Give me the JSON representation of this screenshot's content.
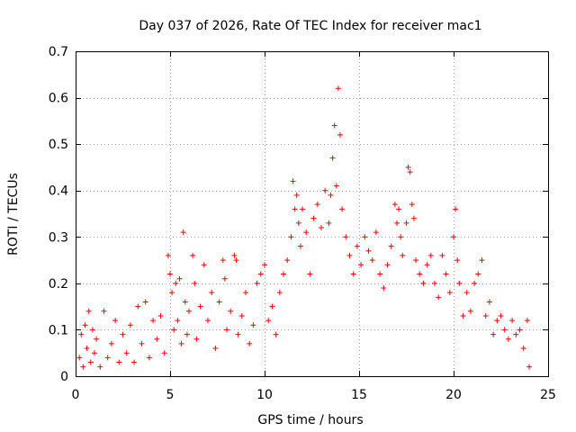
{
  "chart_data": {
    "type": "scatter",
    "title": "Day 037 of 2026, Rate Of TEC Index for receiver mac1",
    "xlabel": "GPS time / hours",
    "ylabel": "ROTI / TECUs",
    "xlim": [
      0,
      25
    ],
    "ylim": [
      0,
      0.7
    ],
    "xticks": [
      0,
      5,
      10,
      15,
      20,
      25
    ],
    "yticks": [
      0,
      0.1,
      0.2,
      0.3,
      0.4,
      0.5,
      0.6,
      0.7
    ],
    "xtick_labels": [
      "0",
      "5",
      "10",
      "15",
      "20",
      "25"
    ],
    "ytick_labels": [
      "0",
      "0.1",
      "0.2",
      "0.3",
      "0.4",
      "0.5",
      "0.6",
      "0.7"
    ],
    "grid": true,
    "marker": "+",
    "color": "#ff0000",
    "series": [
      {
        "name": "mac1",
        "points": [
          [
            0.2,
            0.04
          ],
          [
            0.3,
            0.09
          ],
          [
            0.4,
            0.02
          ],
          [
            0.5,
            0.11
          ],
          [
            0.6,
            0.06
          ],
          [
            0.7,
            0.14
          ],
          [
            0.8,
            0.03
          ],
          [
            0.9,
            0.1
          ],
          [
            1.0,
            0.05
          ],
          [
            1.1,
            0.08
          ],
          [
            1.3,
            0.02
          ],
          [
            1.5,
            0.14
          ],
          [
            1.7,
            0.04
          ],
          [
            1.9,
            0.07
          ],
          [
            2.1,
            0.12
          ],
          [
            2.3,
            0.03
          ],
          [
            2.5,
            0.09
          ],
          [
            2.7,
            0.05
          ],
          [
            2.9,
            0.11
          ],
          [
            3.1,
            0.03
          ],
          [
            3.3,
            0.15
          ],
          [
            3.5,
            0.07
          ],
          [
            3.7,
            0.16
          ],
          [
            3.9,
            0.04
          ],
          [
            4.1,
            0.12
          ],
          [
            4.3,
            0.08
          ],
          [
            4.5,
            0.13
          ],
          [
            4.7,
            0.05
          ],
          [
            4.9,
            0.26
          ],
          [
            5.0,
            0.22
          ],
          [
            5.1,
            0.18
          ],
          [
            5.2,
            0.1
          ],
          [
            5.3,
            0.2
          ],
          [
            5.4,
            0.12
          ],
          [
            5.5,
            0.21
          ],
          [
            5.6,
            0.07
          ],
          [
            5.7,
            0.31
          ],
          [
            5.8,
            0.16
          ],
          [
            5.9,
            0.09
          ],
          [
            6.0,
            0.14
          ],
          [
            6.2,
            0.26
          ],
          [
            6.3,
            0.2
          ],
          [
            6.4,
            0.08
          ],
          [
            6.6,
            0.15
          ],
          [
            6.8,
            0.24
          ],
          [
            7.0,
            0.12
          ],
          [
            7.2,
            0.18
          ],
          [
            7.4,
            0.06
          ],
          [
            7.6,
            0.16
          ],
          [
            7.8,
            0.25
          ],
          [
            7.9,
            0.21
          ],
          [
            8.0,
            0.1
          ],
          [
            8.2,
            0.14
          ],
          [
            8.4,
            0.26
          ],
          [
            8.5,
            0.25
          ],
          [
            8.6,
            0.09
          ],
          [
            8.8,
            0.13
          ],
          [
            9.0,
            0.18
          ],
          [
            9.2,
            0.07
          ],
          [
            9.4,
            0.11
          ],
          [
            9.6,
            0.2
          ],
          [
            9.8,
            0.22
          ],
          [
            10.0,
            0.24
          ],
          [
            10.2,
            0.12
          ],
          [
            10.4,
            0.15
          ],
          [
            10.6,
            0.09
          ],
          [
            10.8,
            0.18
          ],
          [
            11.0,
            0.22
          ],
          [
            11.2,
            0.25
          ],
          [
            11.4,
            0.3
          ],
          [
            11.5,
            0.42
          ],
          [
            11.6,
            0.36
          ],
          [
            11.7,
            0.39
          ],
          [
            11.8,
            0.33
          ],
          [
            11.9,
            0.28
          ],
          [
            12.0,
            0.36
          ],
          [
            12.2,
            0.31
          ],
          [
            12.4,
            0.22
          ],
          [
            12.6,
            0.34
          ],
          [
            12.8,
            0.37
          ],
          [
            13.0,
            0.32
          ],
          [
            13.2,
            0.4
          ],
          [
            13.4,
            0.33
          ],
          [
            13.5,
            0.39
          ],
          [
            13.6,
            0.47
          ],
          [
            13.7,
            0.54
          ],
          [
            13.8,
            0.41
          ],
          [
            13.9,
            0.62
          ],
          [
            14.0,
            0.52
          ],
          [
            14.1,
            0.36
          ],
          [
            14.3,
            0.3
          ],
          [
            14.5,
            0.26
          ],
          [
            14.7,
            0.22
          ],
          [
            14.9,
            0.28
          ],
          [
            15.1,
            0.24
          ],
          [
            15.3,
            0.3
          ],
          [
            15.5,
            0.27
          ],
          [
            15.7,
            0.25
          ],
          [
            15.9,
            0.31
          ],
          [
            16.1,
            0.22
          ],
          [
            16.3,
            0.19
          ],
          [
            16.5,
            0.24
          ],
          [
            16.7,
            0.28
          ],
          [
            16.9,
            0.37
          ],
          [
            17.0,
            0.33
          ],
          [
            17.1,
            0.36
          ],
          [
            17.2,
            0.3
          ],
          [
            17.3,
            0.26
          ],
          [
            17.5,
            0.33
          ],
          [
            17.6,
            0.45
          ],
          [
            17.7,
            0.44
          ],
          [
            17.8,
            0.37
          ],
          [
            17.9,
            0.34
          ],
          [
            18.0,
            0.25
          ],
          [
            18.2,
            0.22
          ],
          [
            18.4,
            0.2
          ],
          [
            18.6,
            0.24
          ],
          [
            18.8,
            0.26
          ],
          [
            19.0,
            0.2
          ],
          [
            19.2,
            0.17
          ],
          [
            19.4,
            0.26
          ],
          [
            19.6,
            0.22
          ],
          [
            19.8,
            0.18
          ],
          [
            20.0,
            0.3
          ],
          [
            20.1,
            0.36
          ],
          [
            20.2,
            0.25
          ],
          [
            20.3,
            0.2
          ],
          [
            20.5,
            0.13
          ],
          [
            20.7,
            0.18
          ],
          [
            20.9,
            0.14
          ],
          [
            21.1,
            0.2
          ],
          [
            21.3,
            0.22
          ],
          [
            21.5,
            0.25
          ],
          [
            21.7,
            0.13
          ],
          [
            21.9,
            0.16
          ],
          [
            22.1,
            0.09
          ],
          [
            22.3,
            0.12
          ],
          [
            22.5,
            0.13
          ],
          [
            22.7,
            0.1
          ],
          [
            22.9,
            0.08
          ],
          [
            23.1,
            0.12
          ],
          [
            23.3,
            0.09
          ],
          [
            23.5,
            0.1
          ],
          [
            23.7,
            0.06
          ],
          [
            23.9,
            0.12
          ],
          [
            24.0,
            0.02
          ]
        ]
      }
    ]
  }
}
